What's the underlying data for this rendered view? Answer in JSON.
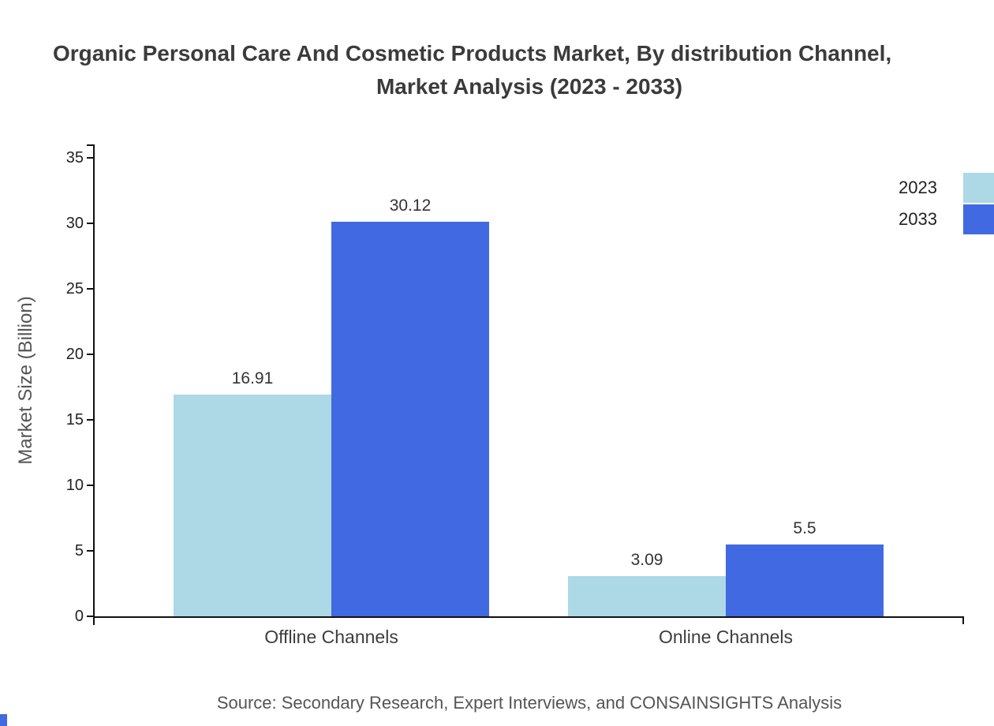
{
  "title": {
    "line1": "Organic Personal Care And Cosmetic Products Market, By distribution Channel,",
    "line2": "Market Analysis (2023 - 2033)"
  },
  "source": "Source: Secondary Research, Expert Interviews, and CONSAINSIGHTS Analysis",
  "chart_data": {
    "type": "bar",
    "title": "Organic Personal Care And Cosmetic Products Market, By distribution Channel, Market Analysis (2023 - 2033)",
    "categories": [
      "Offline Channels",
      "Online Channels"
    ],
    "series": [
      {
        "name": "2023",
        "color": "#ADD8E6",
        "values": [
          16.91,
          3.09
        ]
      },
      {
        "name": "2033",
        "color": "#4169E1",
        "values": [
          30.12,
          5.5
        ]
      }
    ],
    "xlabel": "",
    "ylabel": "Market Size (Billion)",
    "ylim": [
      0,
      35
    ],
    "ytick_step": 5,
    "grid": false,
    "legend_position": "top-right"
  }
}
